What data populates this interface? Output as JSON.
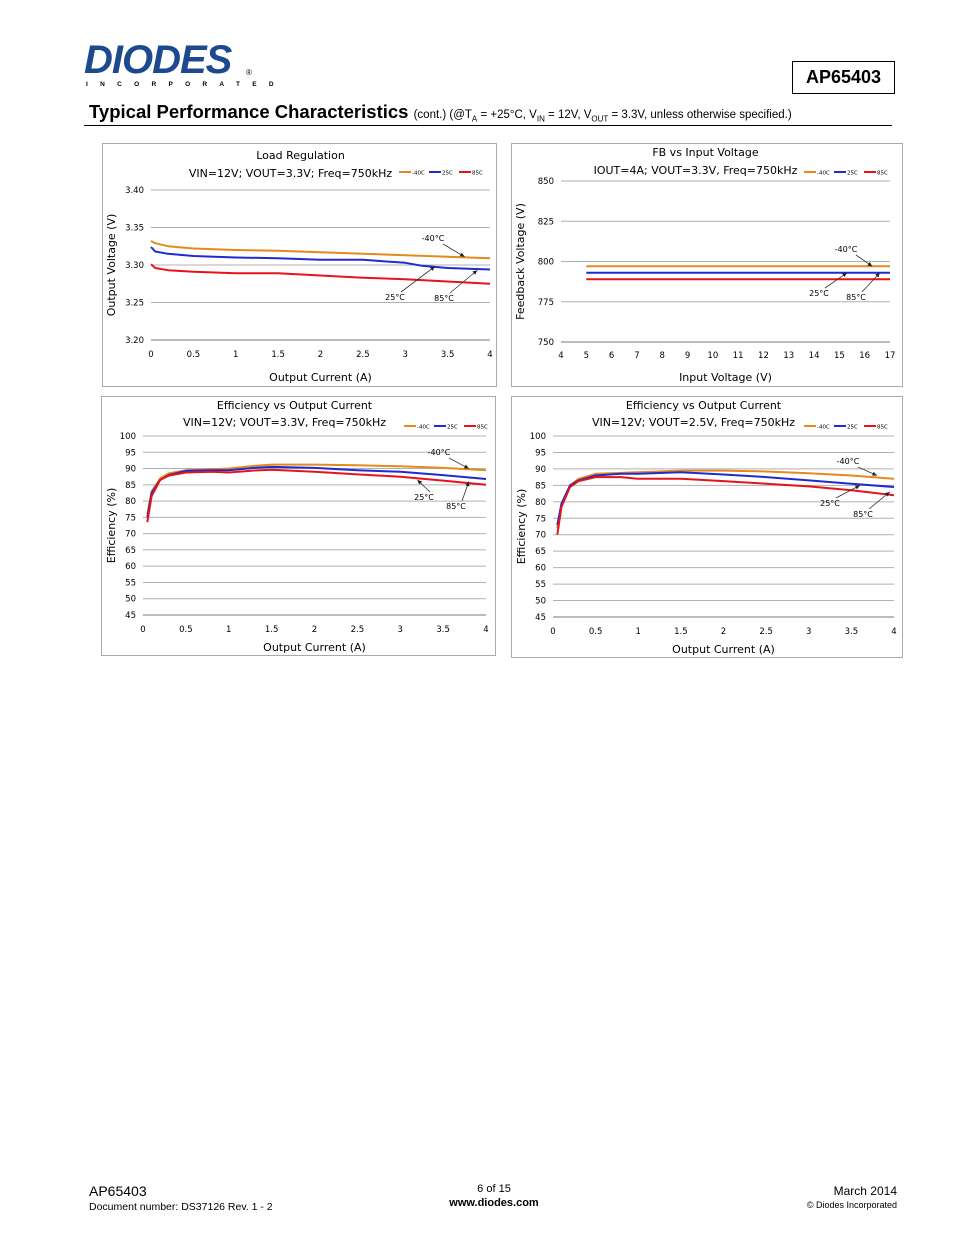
{
  "header": {
    "logo_text": "DIODES",
    "logo_subtext": "INCORPORATED",
    "logo_mark": "®",
    "part_number": "AP65403",
    "section_title": "Typical Performance Characteristics",
    "conditions": "(cont.) (@TA = +25°C, VIN = 12V, VOUT = 3.3V, unless otherwise specified.)"
  },
  "colors": {
    "m40": "#e58a1f",
    "p25": "#1f2bd1",
    "p85": "#e8121a",
    "grid": "#999999"
  },
  "chart_data": [
    {
      "type": "line",
      "title": "Load Regulation",
      "subtitle": "VIN=12V;  VOUT=3.3V; Freq=750kHz",
      "xlabel": "Output Current (A)",
      "ylabel": "Output Voltage (V)",
      "xlim": [
        0,
        4
      ],
      "ylim": [
        3.2,
        3.4
      ],
      "xticks": [
        "0",
        "0.5",
        "1",
        "1.5",
        "2",
        "2.5",
        "3",
        "3.5",
        "4"
      ],
      "yticks": [
        "3.20",
        "3.25",
        "3.30",
        "3.35",
        "3.40"
      ],
      "legend": [
        "-40C",
        "25C",
        "85C"
      ],
      "annotations": [
        "-40°C",
        "25°C",
        "85°C"
      ],
      "series": [
        {
          "name": "-40C",
          "x": [
            0,
            0.05,
            0.2,
            0.5,
            1,
            1.5,
            2,
            2.5,
            3,
            3.5,
            4
          ],
          "y": [
            3.332,
            3.329,
            3.325,
            3.322,
            3.32,
            3.319,
            3.317,
            3.315,
            3.313,
            3.311,
            3.309
          ]
        },
        {
          "name": "25C",
          "x": [
            0,
            0.05,
            0.2,
            0.5,
            1,
            1.5,
            2,
            2.5,
            3,
            3.2,
            3.5,
            4
          ],
          "y": [
            3.324,
            3.318,
            3.315,
            3.312,
            3.31,
            3.309,
            3.307,
            3.307,
            3.303,
            3.299,
            3.296,
            3.294
          ]
        },
        {
          "name": "85C",
          "x": [
            0,
            0.05,
            0.2,
            0.5,
            1,
            1.5,
            2,
            2.5,
            3,
            3.5,
            4
          ],
          "y": [
            3.301,
            3.296,
            3.293,
            3.291,
            3.289,
            3.289,
            3.286,
            3.283,
            3.281,
            3.278,
            3.275
          ]
        }
      ]
    },
    {
      "type": "line",
      "title": "FB vs Input Voltage",
      "subtitle": "IOUT=4A; VOUT=3.3V, Freq=750kHz",
      "xlabel": "Input Voltage (V)",
      "ylabel": "Feedback Voltage (V)",
      "xlim": [
        4,
        17
      ],
      "ylim": [
        750,
        850
      ],
      "xticks": [
        "4",
        "5",
        "6",
        "7",
        "8",
        "9",
        "10",
        "11",
        "12",
        "13",
        "14",
        "15",
        "16",
        "17"
      ],
      "yticks": [
        "750",
        "775",
        "800",
        "825",
        "850"
      ],
      "legend": [
        "-40C",
        "25C",
        "85C"
      ],
      "annotations": [
        "-40°C",
        "25°C",
        "85°C"
      ],
      "series": [
        {
          "name": "-40C",
          "x": [
            5,
            17
          ],
          "y": [
            797,
            797
          ]
        },
        {
          "name": "25C",
          "x": [
            5,
            17
          ],
          "y": [
            793,
            793
          ]
        },
        {
          "name": "85C",
          "x": [
            5,
            17
          ],
          "y": [
            789,
            789
          ]
        }
      ]
    },
    {
      "type": "line",
      "title": "Efficiency vs Output Current",
      "subtitle": "VIN=12V; VOUT=3.3V, Freq=750kHz",
      "xlabel": "Output Current (A)",
      "ylabel": "Efficiency (%)",
      "xlim": [
        0,
        4
      ],
      "ylim": [
        45,
        100
      ],
      "xticks": [
        "0",
        "0.5",
        "1",
        "1.5",
        "2",
        "2.5",
        "3",
        "3.5",
        "4"
      ],
      "yticks": [
        "45",
        "50",
        "55",
        "60",
        "65",
        "70",
        "75",
        "80",
        "85",
        "90",
        "95",
        "100"
      ],
      "legend": [
        "-40C",
        "25C",
        "85C"
      ],
      "annotations": [
        "-40°C",
        "25°C",
        "85°C"
      ],
      "series": [
        {
          "name": "-40C",
          "x": [
            0.05,
            0.1,
            0.2,
            0.3,
            0.5,
            0.8,
            1,
            1.3,
            1.5,
            2,
            2.5,
            3,
            3.5,
            4
          ],
          "y": [
            76,
            83,
            87,
            88.5,
            89.5,
            89.8,
            90,
            90.8,
            91.2,
            91.2,
            91,
            90.7,
            90.2,
            89.5
          ]
        },
        {
          "name": "25C",
          "x": [
            0.05,
            0.1,
            0.2,
            0.3,
            0.5,
            0.8,
            1,
            1.3,
            1.5,
            2,
            2.5,
            3,
            3.5,
            4
          ],
          "y": [
            75,
            82.5,
            86.5,
            88,
            89.3,
            89.5,
            89.5,
            90.2,
            90.5,
            90.2,
            89.5,
            89,
            88,
            86.8
          ]
        },
        {
          "name": "85C",
          "x": [
            0.05,
            0.1,
            0.2,
            0.3,
            0.5,
            0.8,
            1,
            1.3,
            1.5,
            2,
            2.5,
            3,
            3.5,
            4
          ],
          "y": [
            73.5,
            81.5,
            86.5,
            87.8,
            88.8,
            89,
            88.8,
            89.4,
            89.6,
            89,
            88.2,
            87.5,
            86.3,
            85
          ]
        }
      ]
    },
    {
      "type": "line",
      "title": "Efficiency vs Output Current",
      "subtitle": "VIN=12V; VOUT=2.5V, Freq=750kHz",
      "xlabel": "Output Current (A)",
      "ylabel": "Efficiency (%)",
      "xlim": [
        0,
        4
      ],
      "ylim": [
        45,
        100
      ],
      "xticks": [
        "0",
        "0.5",
        "1",
        "1.5",
        "2",
        "2.5",
        "3",
        "3.5",
        "4"
      ],
      "yticks": [
        "45",
        "50",
        "55",
        "60",
        "65",
        "70",
        "75",
        "80",
        "85",
        "90",
        "95",
        "100"
      ],
      "legend": [
        "-40C",
        "25C",
        "85C"
      ],
      "annotations": [
        "-40°C",
        "25°C",
        "85°C"
      ],
      "series": [
        {
          "name": "-40C",
          "x": [
            0.05,
            0.1,
            0.2,
            0.3,
            0.5,
            0.8,
            1,
            1.5,
            2,
            2.5,
            3,
            3.5,
            4
          ],
          "y": [
            72,
            79,
            85,
            87,
            88.5,
            88.8,
            89,
            89.5,
            89.5,
            89.2,
            88.7,
            88,
            87
          ]
        },
        {
          "name": "25C",
          "x": [
            0.05,
            0.1,
            0.2,
            0.3,
            0.5,
            0.8,
            1,
            1.5,
            2,
            2.5,
            3,
            3.5,
            4
          ],
          "y": [
            73,
            79.5,
            85,
            86.5,
            88,
            88.5,
            88.5,
            89,
            88.3,
            87.5,
            86.5,
            85.5,
            84.5
          ]
        },
        {
          "name": "85C",
          "x": [
            0.05,
            0.1,
            0.2,
            0.3,
            0.5,
            0.8,
            1,
            1.5,
            2,
            2.5,
            3,
            3.5,
            4
          ],
          "y": [
            70,
            78.5,
            84.5,
            86.3,
            87.5,
            87.5,
            87,
            87,
            86.3,
            85.5,
            84.7,
            83.5,
            82
          ]
        }
      ]
    }
  ],
  "footer": {
    "part": "AP65403",
    "doc": "Document number: DS37126 Rev. 1 - 2",
    "page": "6 of 15",
    "url": "www.diodes.com",
    "date": "March 2014",
    "copyright": "© Diodes Incorporated"
  }
}
